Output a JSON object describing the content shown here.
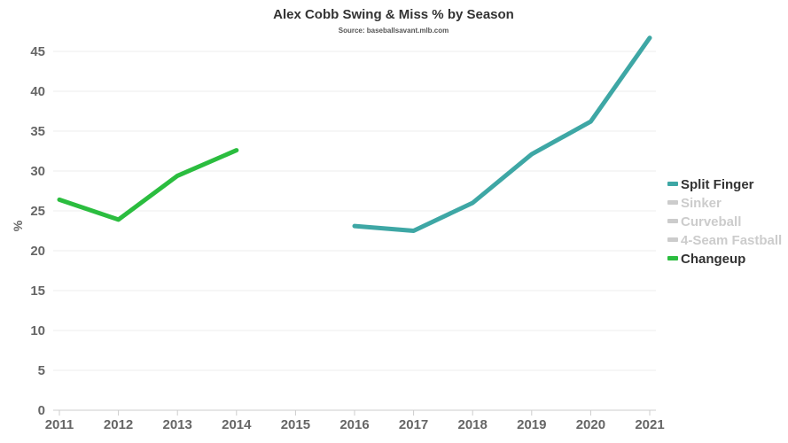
{
  "chart_data": {
    "type": "line",
    "title": "Alex Cobb Swing & Miss % by Season",
    "subtitle": "Source: baseballsavant.mlb.com",
    "xlabel": "",
    "ylabel": "%",
    "x": [
      2011,
      2012,
      2013,
      2014,
      2015,
      2016,
      2017,
      2018,
      2019,
      2020,
      2021
    ],
    "xlim": [
      2011,
      2021
    ],
    "ylim": [
      0,
      47
    ],
    "yticks": [
      0,
      5,
      10,
      15,
      20,
      25,
      30,
      35,
      40,
      45
    ],
    "grid": true,
    "legend_position": "right",
    "series": [
      {
        "name": "Split Finger",
        "color": "#3ea7a5",
        "visible": true,
        "points": [
          [
            2016,
            23.1
          ],
          [
            2017,
            22.5
          ],
          [
            2018,
            26.0
          ],
          [
            2019,
            32.1
          ],
          [
            2020,
            36.2
          ],
          [
            2021,
            46.7
          ]
        ]
      },
      {
        "name": "Sinker",
        "color": "#cccccc",
        "visible": false,
        "points": []
      },
      {
        "name": "Curveball",
        "color": "#cccccc",
        "visible": false,
        "points": []
      },
      {
        "name": "4-Seam Fastball",
        "color": "#cccccc",
        "visible": false,
        "points": []
      },
      {
        "name": "Changeup",
        "color": "#2bbd3f",
        "visible": true,
        "points": [
          [
            2011,
            26.4
          ],
          [
            2012,
            23.9
          ],
          [
            2013,
            29.4
          ],
          [
            2014,
            32.6
          ]
        ]
      }
    ]
  }
}
